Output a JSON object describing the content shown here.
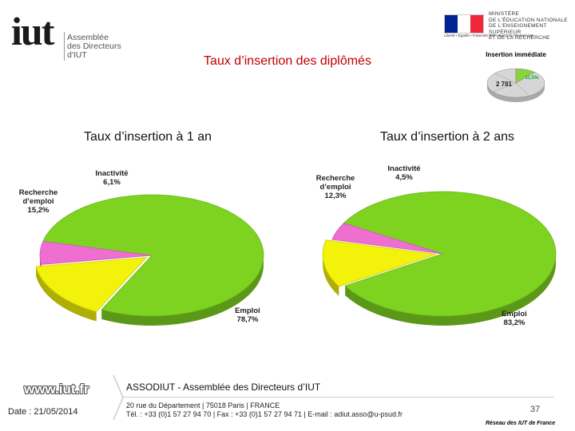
{
  "header": {
    "logo_iut": "iut",
    "logo_line1": "Assemblée",
    "logo_line2": "des Directeurs",
    "logo_line3": "d'IUT",
    "ministry_line1": "MINISTÈRE",
    "ministry_line2": "DE L'ÉDUCATION NATIONALE",
    "ministry_line3": "DE L'ENSEIGNEMENT SUPÉRIEUR",
    "ministry_line4": "ET DE LA RECHERCHE",
    "flag_caption": "Liberté • Égalité • Fraternité RÉPUBLIQUE FRANÇAISE",
    "title": "Taux d’insertion des diplômés"
  },
  "colors": {
    "title_red": "#c00000",
    "emploi": "#7ed321",
    "recherche": "#f2f20a",
    "inactivite": "#ee6fd0",
    "mini_big": "#d6d6d6",
    "mini_small": "#8bd33a"
  },
  "chart_data": [
    {
      "type": "pie",
      "title": "Taux d’insertion à 1 an",
      "categories": [
        "Emploi",
        "Recherche d'emploi",
        "Inactivité"
      ],
      "values": [
        78.7,
        15.2,
        6.1
      ],
      "labels": [
        "78,7%",
        "15,2%",
        "6,1%"
      ]
    },
    {
      "type": "pie",
      "title": "Taux d’insertion à 2 ans",
      "categories": [
        "Emploi",
        "Recherche d'emploi",
        "Inactivité"
      ],
      "values": [
        83.2,
        12.3,
        4.5
      ],
      "labels": [
        "83,2%",
        "12,3%",
        "4,5%"
      ]
    },
    {
      "type": "pie",
      "title": "Insertion immédiate",
      "values": [
        88.5,
        11.5
      ],
      "labels": [
        "2 781",
        "11,5%"
      ]
    }
  ],
  "footer": {
    "website": "www.iut.fr",
    "date": "Date : 21/05/2014",
    "assoc": "ASSODIUT - Assemblée des Directeurs d’IUT",
    "address": "20 rue du Département | 75018 Paris | FRANCE",
    "contact": "Tél. : +33 (0)1 57 27 94 70 | Fax : +33 (0)1 57 27 94 71 | E-mail : adiut.asso@u-psud.fr",
    "page": "37",
    "network": "Réseau des IUT de France"
  }
}
